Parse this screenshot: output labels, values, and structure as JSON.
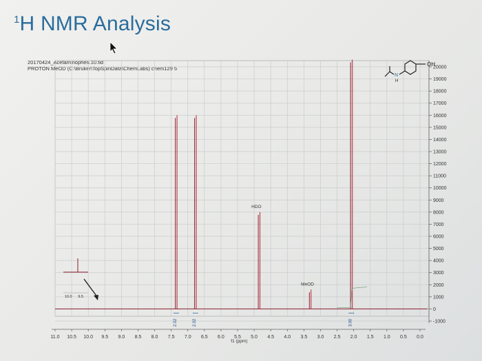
{
  "slide": {
    "title_sup": "1",
    "title": "H NMR Analysis"
  },
  "spectrum_header": {
    "filename": "20170424_Acetaminophen.10.fid",
    "description": "PROTON MeOD (C:\\Bruker\\TopSpinData\\ChemLabs) chem129 5"
  },
  "structure": {
    "oh_label": "OH",
    "n_label": "N",
    "h_label": "H"
  },
  "chart_data": {
    "type": "line",
    "xlabel": "f1 (ppm)",
    "ylabel": "",
    "xlim": [
      11.0,
      -0.2
    ],
    "ylim": [
      -1000,
      20000
    ],
    "x_ticks": [
      "11.0",
      "10.5",
      "10.0",
      "9.5",
      "9.0",
      "8.5",
      "8.0",
      "7.5",
      "7.0",
      "6.5",
      "6.0",
      "5.5",
      "5.0",
      "4.5",
      "4.0",
      "3.5",
      "3.0",
      "2.5",
      "2.0",
      "1.5",
      "1.0",
      "0.5",
      "0.0"
    ],
    "x_tick_values": [
      11.0,
      10.5,
      10.0,
      9.5,
      9.0,
      8.5,
      8.0,
      7.5,
      7.0,
      6.5,
      6.0,
      5.5,
      5.0,
      4.5,
      4.0,
      3.5,
      3.0,
      2.5,
      2.0,
      1.5,
      1.0,
      0.5,
      0.0
    ],
    "y_ticks": [
      "20000",
      "19000",
      "18000",
      "17000",
      "16000",
      "15000",
      "14000",
      "13000",
      "12000",
      "11000",
      "10000",
      "9000",
      "8000",
      "7000",
      "6000",
      "5000",
      "4000",
      "3000",
      "2000",
      "1000",
      "0",
      "-1000"
    ],
    "y_tick_values": [
      20000,
      19000,
      18000,
      17000,
      16000,
      15000,
      14000,
      13000,
      12000,
      11000,
      10000,
      9000,
      8000,
      7000,
      6000,
      5000,
      4000,
      3000,
      2000,
      1000,
      0,
      -1000
    ],
    "peaks": [
      {
        "shift": 7.35,
        "height": 16000,
        "integral_label": "2.02"
      },
      {
        "shift": 6.77,
        "height": 16000,
        "integral_label": "2.02"
      },
      {
        "shift": 4.85,
        "height": 8000,
        "label": "HDO"
      },
      {
        "shift": 3.31,
        "height": 1600,
        "label": "MeOD"
      },
      {
        "shift": 2.07,
        "height": 20600,
        "integral_label": "3.00"
      }
    ],
    "inset": {
      "x_ticks": [
        "10.0",
        "9.5"
      ],
      "x_tick_values": [
        10.0,
        9.5
      ]
    }
  }
}
